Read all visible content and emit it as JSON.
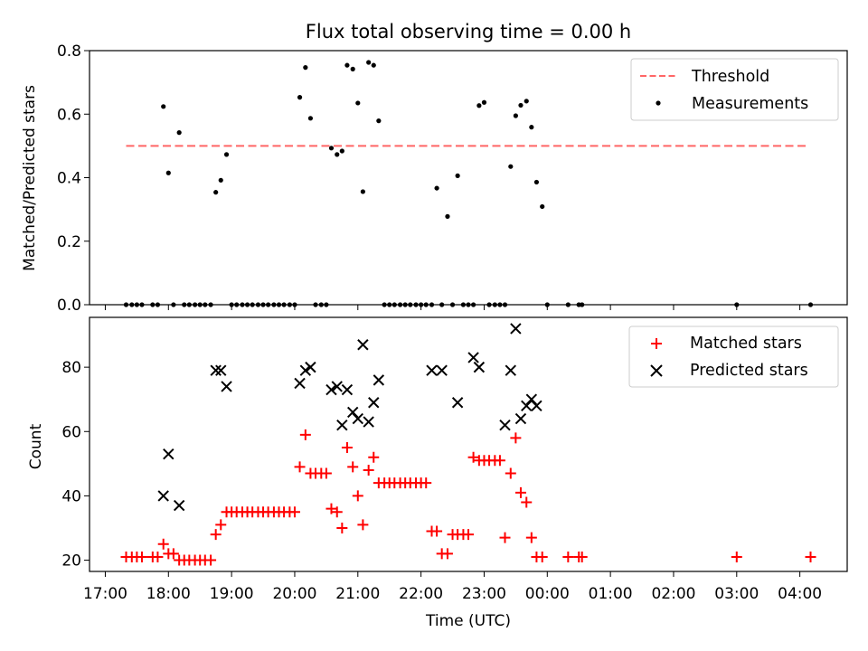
{
  "figure": {
    "title": "Flux total observing time = 0.00 h",
    "xlabel": "Time (UTC)"
  },
  "chart_data": [
    {
      "type": "scatter",
      "panel": "top",
      "ylabel": "Matched/Predicted stars",
      "xlim": [
        16.75,
        28.75
      ],
      "ylim": [
        0,
        0.8
      ],
      "yticks": [
        0,
        0.2,
        0.4,
        0.6,
        0.8
      ],
      "ytick_labels": [
        "0.0",
        "0.2",
        "0.4",
        "0.6",
        "0.8"
      ],
      "legend_position": "top-right",
      "threshold": {
        "name": "Threshold",
        "value": 0.5,
        "x_start": 17.33,
        "x_end": 28.1,
        "color": "#ff6666",
        "style": "dashed"
      },
      "measurements_name": "Measurements",
      "measurements": [
        [
          17.33,
          0
        ],
        [
          17.42,
          0
        ],
        [
          17.5,
          0
        ],
        [
          17.58,
          0
        ],
        [
          17.75,
          0
        ],
        [
          17.83,
          0
        ],
        [
          17.92,
          0.624
        ],
        [
          18.0,
          0.415
        ],
        [
          18.08,
          0
        ],
        [
          18.17,
          0.542
        ],
        [
          18.25,
          0
        ],
        [
          18.33,
          0
        ],
        [
          18.42,
          0
        ],
        [
          18.5,
          0
        ],
        [
          18.58,
          0
        ],
        [
          18.67,
          0
        ],
        [
          18.75,
          0.354
        ],
        [
          18.83,
          0.392
        ],
        [
          18.92,
          0.473
        ],
        [
          19.0,
          0
        ],
        [
          19.08,
          0
        ],
        [
          19.17,
          0
        ],
        [
          19.25,
          0
        ],
        [
          19.33,
          0
        ],
        [
          19.42,
          0
        ],
        [
          19.5,
          0
        ],
        [
          19.58,
          0
        ],
        [
          19.67,
          0
        ],
        [
          19.75,
          0
        ],
        [
          19.83,
          0
        ],
        [
          19.92,
          0
        ],
        [
          20.0,
          0
        ],
        [
          20.08,
          0.653
        ],
        [
          20.17,
          0.747
        ],
        [
          20.25,
          0.587
        ],
        [
          20.33,
          0
        ],
        [
          20.42,
          0
        ],
        [
          20.5,
          0
        ],
        [
          20.58,
          0.493
        ],
        [
          20.67,
          0.473
        ],
        [
          20.75,
          0.484
        ],
        [
          20.83,
          0.754
        ],
        [
          20.92,
          0.742
        ],
        [
          21.0,
          0.635
        ],
        [
          21.08,
          0.356
        ],
        [
          21.17,
          0.763
        ],
        [
          21.25,
          0.754
        ],
        [
          21.33,
          0.579
        ],
        [
          21.42,
          0
        ],
        [
          21.5,
          0
        ],
        [
          21.58,
          0
        ],
        [
          21.67,
          0
        ],
        [
          21.75,
          0
        ],
        [
          21.83,
          0
        ],
        [
          21.92,
          0
        ],
        [
          22.0,
          0
        ],
        [
          22.08,
          0
        ],
        [
          22.17,
          0
        ],
        [
          22.25,
          0.367
        ],
        [
          22.33,
          0
        ],
        [
          22.42,
          0.278
        ],
        [
          22.5,
          0
        ],
        [
          22.58,
          0.406
        ],
        [
          22.67,
          0
        ],
        [
          22.75,
          0
        ],
        [
          22.83,
          0
        ],
        [
          22.92,
          0.627
        ],
        [
          23.0,
          0.637
        ],
        [
          23.08,
          0
        ],
        [
          23.17,
          0
        ],
        [
          23.25,
          0
        ],
        [
          23.33,
          0
        ],
        [
          23.42,
          0.435
        ],
        [
          23.5,
          0.595
        ],
        [
          23.58,
          0.628
        ],
        [
          23.67,
          0.641
        ],
        [
          23.75,
          0.559
        ],
        [
          23.83,
          0.386
        ],
        [
          23.92,
          0.309
        ],
        [
          24.0,
          0
        ],
        [
          24.33,
          0
        ],
        [
          24.5,
          0
        ],
        [
          24.55,
          0
        ],
        [
          27.0,
          0
        ],
        [
          28.17,
          0
        ]
      ]
    },
    {
      "type": "scatter",
      "panel": "bottom",
      "ylabel": "Count",
      "xlim": [
        16.75,
        28.75
      ],
      "ylim": [
        16.5,
        95.5
      ],
      "yticks": [
        20,
        40,
        60,
        80
      ],
      "ytick_labels": [
        "20",
        "40",
        "60",
        "80"
      ],
      "legend_position": "top-right",
      "xticks": [
        17,
        18,
        19,
        20,
        21,
        22,
        23,
        24,
        25,
        26,
        27,
        28
      ],
      "xtick_labels": [
        "17:00",
        "18:00",
        "19:00",
        "20:00",
        "21:00",
        "22:00",
        "23:00",
        "00:00",
        "01:00",
        "02:00",
        "03:00",
        "04:00"
      ],
      "series": [
        {
          "name": "Matched stars",
          "marker": "plus",
          "color": "#ff0000",
          "points": [
            [
              17.33,
              21
            ],
            [
              17.42,
              21
            ],
            [
              17.5,
              21
            ],
            [
              17.58,
              21
            ],
            [
              17.75,
              21
            ],
            [
              17.83,
              21
            ],
            [
              17.92,
              25
            ],
            [
              18.0,
              22
            ],
            [
              18.08,
              22
            ],
            [
              18.17,
              20
            ],
            [
              18.25,
              20
            ],
            [
              18.33,
              20
            ],
            [
              18.42,
              20
            ],
            [
              18.5,
              20
            ],
            [
              18.58,
              20
            ],
            [
              18.67,
              20
            ],
            [
              18.75,
              28
            ],
            [
              18.83,
              31
            ],
            [
              18.92,
              35
            ],
            [
              19.0,
              35
            ],
            [
              19.08,
              35
            ],
            [
              19.17,
              35
            ],
            [
              19.25,
              35
            ],
            [
              19.33,
              35
            ],
            [
              19.42,
              35
            ],
            [
              19.5,
              35
            ],
            [
              19.58,
              35
            ],
            [
              19.67,
              35
            ],
            [
              19.75,
              35
            ],
            [
              19.83,
              35
            ],
            [
              19.92,
              35
            ],
            [
              20.0,
              35
            ],
            [
              20.08,
              49
            ],
            [
              20.17,
              59
            ],
            [
              20.25,
              47
            ],
            [
              20.33,
              47
            ],
            [
              20.42,
              47
            ],
            [
              20.5,
              47
            ],
            [
              20.58,
              36
            ],
            [
              20.67,
              35
            ],
            [
              20.75,
              30
            ],
            [
              20.83,
              55
            ],
            [
              20.92,
              49
            ],
            [
              21.0,
              40
            ],
            [
              21.08,
              31
            ],
            [
              21.17,
              48
            ],
            [
              21.25,
              52
            ],
            [
              21.33,
              44
            ],
            [
              21.42,
              44
            ],
            [
              21.5,
              44
            ],
            [
              21.58,
              44
            ],
            [
              21.67,
              44
            ],
            [
              21.75,
              44
            ],
            [
              21.83,
              44
            ],
            [
              21.92,
              44
            ],
            [
              22.0,
              44
            ],
            [
              22.08,
              44
            ],
            [
              22.17,
              29
            ],
            [
              22.25,
              29
            ],
            [
              22.33,
              22
            ],
            [
              22.42,
              22
            ],
            [
              22.5,
              28
            ],
            [
              22.58,
              28
            ],
            [
              22.67,
              28
            ],
            [
              22.75,
              28
            ],
            [
              22.83,
              52
            ],
            [
              22.92,
              51
            ],
            [
              23.0,
              51
            ],
            [
              23.08,
              51
            ],
            [
              23.17,
              51
            ],
            [
              23.25,
              51
            ],
            [
              23.33,
              27
            ],
            [
              23.42,
              47
            ],
            [
              23.5,
              58
            ],
            [
              23.58,
              41
            ],
            [
              23.67,
              38
            ],
            [
              23.75,
              27
            ],
            [
              23.83,
              21
            ],
            [
              23.92,
              21
            ],
            [
              24.33,
              21
            ],
            [
              24.5,
              21
            ],
            [
              24.55,
              21
            ],
            [
              27.0,
              21
            ],
            [
              28.17,
              21
            ]
          ]
        },
        {
          "name": "Predicted stars",
          "marker": "x",
          "color": "#000000",
          "points": [
            [
              17.92,
              40
            ],
            [
              18.0,
              53
            ],
            [
              18.17,
              37
            ],
            [
              18.75,
              79
            ],
            [
              18.83,
              79
            ],
            [
              18.92,
              74
            ],
            [
              20.08,
              75
            ],
            [
              20.17,
              79
            ],
            [
              20.25,
              80
            ],
            [
              20.58,
              73
            ],
            [
              20.67,
              74
            ],
            [
              20.75,
              62
            ],
            [
              20.83,
              73
            ],
            [
              20.92,
              66
            ],
            [
              21.0,
              64
            ],
            [
              21.08,
              87
            ],
            [
              21.17,
              63
            ],
            [
              21.25,
              69
            ],
            [
              21.33,
              76
            ],
            [
              22.17,
              79
            ],
            [
              22.33,
              79
            ],
            [
              22.58,
              69
            ],
            [
              22.83,
              83
            ],
            [
              22.92,
              80
            ],
            [
              23.33,
              62
            ],
            [
              23.42,
              79
            ],
            [
              23.5,
              92
            ],
            [
              23.58,
              64
            ],
            [
              23.67,
              68
            ],
            [
              23.75,
              70
            ],
            [
              23.83,
              68
            ]
          ]
        }
      ]
    }
  ]
}
